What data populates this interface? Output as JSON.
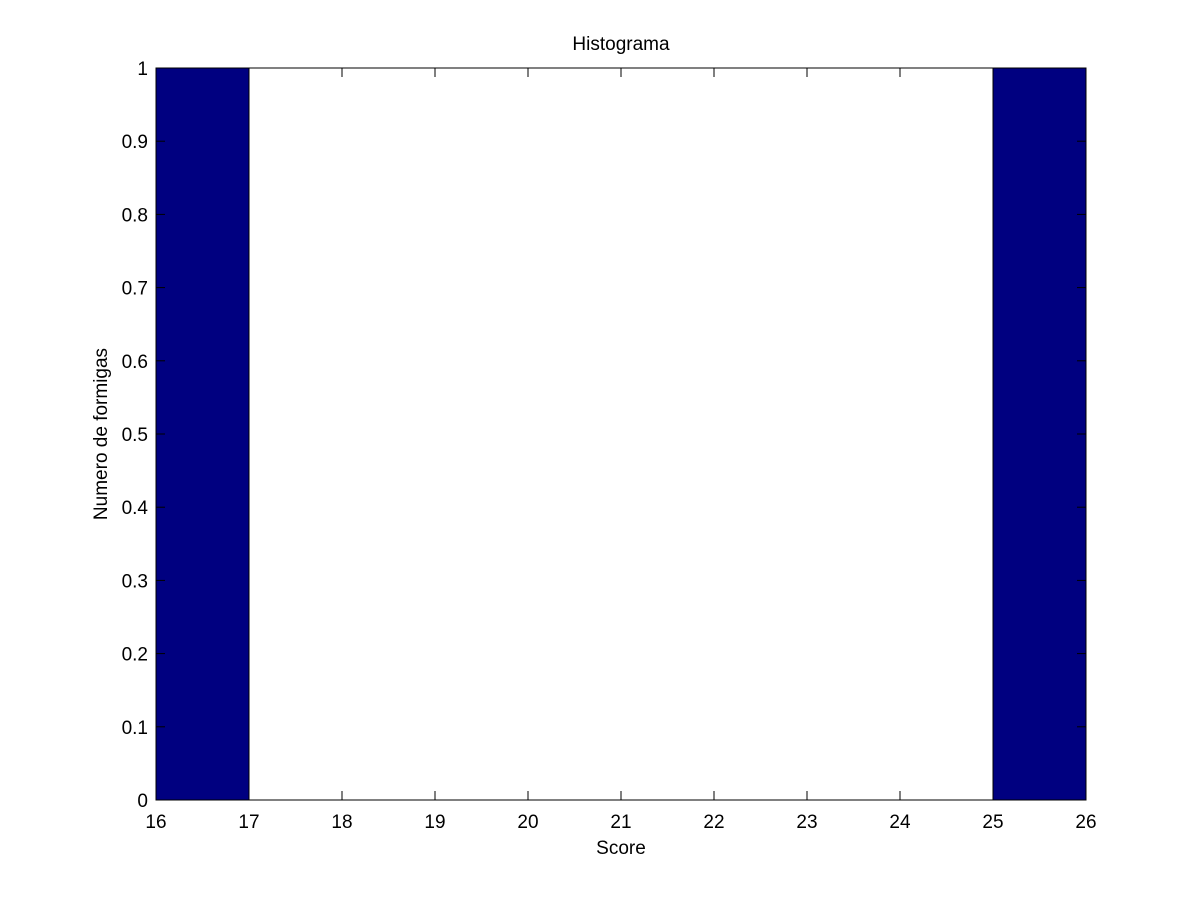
{
  "chart_data": {
    "type": "bar",
    "title": "Histograma",
    "xlabel": "Score",
    "ylabel": "Numero de formigas",
    "xlim": [
      16,
      26
    ],
    "ylim": [
      0,
      1
    ],
    "xticks": [
      "16",
      "17",
      "18",
      "19",
      "20",
      "21",
      "22",
      "23",
      "24",
      "25",
      "26"
    ],
    "yticks": [
      "0",
      "0.1",
      "0.2",
      "0.3",
      "0.4",
      "0.5",
      "0.6",
      "0.7",
      "0.8",
      "0.9",
      "1"
    ],
    "bins": [
      {
        "x_start": 16,
        "x_end": 17,
        "count": 1
      },
      {
        "x_start": 25,
        "x_end": 26,
        "count": 1
      }
    ],
    "grid": false,
    "bar_color": "#000080",
    "bar_edge_color": "#000000"
  }
}
